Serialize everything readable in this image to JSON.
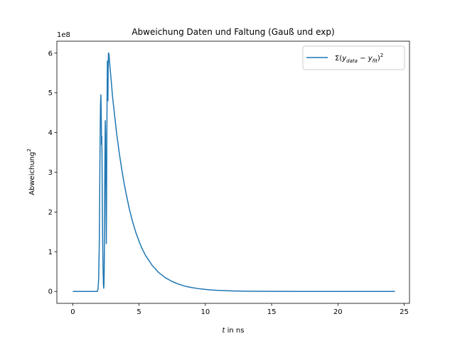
{
  "chart_data": {
    "type": "line",
    "title": "Abweichung Daten und Faltung (Gauß und exp)",
    "xlabel_italic": "t",
    "xlabel_rest": " in ns",
    "ylabel_base": "Abweichung",
    "ylabel_sup": "2",
    "offset_text": "1e8",
    "xlim": [
      -1.2,
      25.4
    ],
    "ylim": [
      -0.3,
      6.3
    ],
    "x_ticks": [
      0,
      5,
      10,
      15,
      20,
      25
    ],
    "x_tick_labels": [
      "0",
      "5",
      "10",
      "15",
      "20",
      "25"
    ],
    "y_ticks": [
      0,
      1,
      2,
      3,
      4,
      5,
      6
    ],
    "y_tick_labels": [
      "0",
      "1",
      "2",
      "3",
      "4",
      "5",
      "6"
    ],
    "grid": false,
    "legend_position": "top-right",
    "colors": {
      "series": "#1f77b4",
      "axis": "#000000",
      "legend_border": "#cccccc"
    },
    "series": [
      {
        "legend_sigma": "Σ(",
        "legend_y1": "y",
        "legend_sub1": "data",
        "legend_minus": " − ",
        "legend_y2": "y",
        "legend_sub2": "fit",
        "legend_close": ")",
        "legend_sup": "2",
        "x": [
          0.0,
          0.5,
          1.0,
          1.5,
          1.85,
          1.9,
          1.95,
          2.0,
          2.03,
          2.06,
          2.09,
          2.12,
          2.15,
          2.17,
          2.19,
          2.21,
          2.23,
          2.25,
          2.27,
          2.29,
          2.31,
          2.33,
          2.35,
          2.37,
          2.39,
          2.41,
          2.43,
          2.45,
          2.47,
          2.49,
          2.51,
          2.53,
          2.55,
          2.57,
          2.59,
          2.61,
          2.63,
          2.65,
          2.67,
          2.69,
          2.71,
          2.73,
          2.75,
          2.78,
          2.82,
          2.86,
          2.9,
          2.95,
          3.0,
          3.1,
          3.2,
          3.3,
          3.4,
          3.5,
          3.6,
          3.7,
          3.8,
          3.9,
          4.0,
          4.25,
          4.5,
          4.75,
          5.0,
          5.25,
          5.5,
          6.0,
          6.5,
          7.0,
          7.5,
          8.0,
          8.5,
          9.0,
          9.5,
          10.0,
          10.5,
          11.0,
          12.0,
          13.0,
          14.0,
          15.0,
          16.0,
          17.0,
          18.0,
          19.0,
          20.0,
          21.0,
          22.0,
          23.0,
          24.0,
          24.3
        ],
        "y": [
          0.0,
          0.0,
          0.0,
          0.0,
          0.0,
          0.05,
          0.3,
          1.2,
          2.5,
          3.8,
          4.7,
          4.95,
          4.4,
          3.7,
          3.9,
          3.2,
          2.0,
          1.4,
          0.9,
          0.5,
          0.2,
          0.08,
          0.15,
          0.5,
          1.4,
          2.6,
          3.6,
          4.3,
          4.0,
          3.0,
          1.9,
          1.2,
          2.5,
          4.0,
          5.0,
          5.8,
          5.4,
          4.8,
          5.6,
          6.0,
          6.0,
          5.95,
          5.9,
          5.75,
          5.6,
          5.45,
          5.3,
          5.1,
          4.9,
          4.6,
          4.3,
          4.0,
          3.75,
          3.5,
          3.28,
          3.06,
          2.86,
          2.67,
          2.5,
          2.1,
          1.77,
          1.49,
          1.26,
          1.06,
          0.9,
          0.65,
          0.47,
          0.34,
          0.25,
          0.18,
          0.13,
          0.095,
          0.07,
          0.05,
          0.036,
          0.026,
          0.014,
          0.007,
          0.004,
          0.002,
          0.001,
          0.0005,
          0.0002,
          0.0001,
          0.0,
          0.0,
          0.0,
          0.0,
          0.0,
          0.0
        ]
      }
    ]
  }
}
